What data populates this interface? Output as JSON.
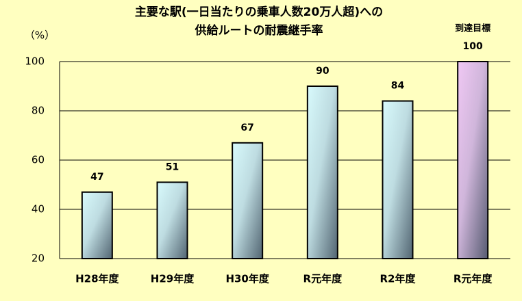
{
  "chart_data": {
    "type": "bar",
    "title": [
      "主要な駅(一日当たりの乗車人数20万人超)への",
      "供給ルートの耐震継手率"
    ],
    "y_label": "（%）",
    "annotation": "到達目標",
    "categories": [
      "H28年度",
      "H29年度",
      "H30年度",
      "R元年度",
      "R2年度",
      "R元年度"
    ],
    "values": [
      47,
      51,
      67,
      90,
      84,
      100
    ],
    "colors": [
      "#d8fafc",
      "#d8fafc",
      "#d8fafc",
      "#d8fafc",
      "#d8fafc",
      "#f0c8f4"
    ],
    "ylim": [
      20,
      100
    ],
    "yticks": [
      20,
      40,
      60,
      80,
      100
    ],
    "grid": true
  }
}
